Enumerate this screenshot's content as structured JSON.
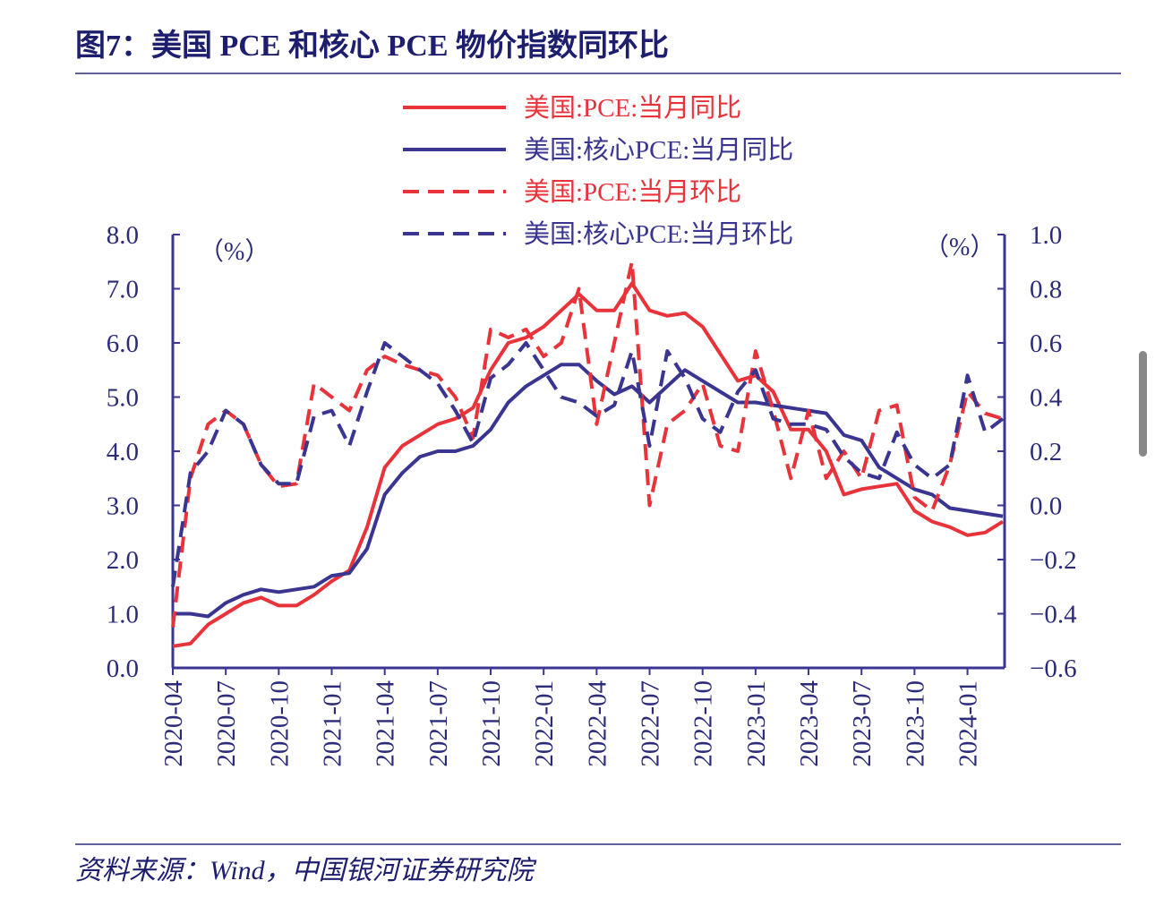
{
  "chart_data": {
    "type": "line",
    "title": "图7：美国 PCE 和核心 PCE 物价指数同环比",
    "source": "资料来源：Wind，中国银河证券研究院",
    "ylabel": "（%）",
    "y2label": "（%）",
    "legend": "top",
    "categories": [
      "2020-04",
      null,
      null,
      "2020-07",
      null,
      null,
      "2020-10",
      null,
      null,
      "2021-01",
      null,
      null,
      "2021-04",
      null,
      null,
      "2021-07",
      null,
      null,
      "2021-10",
      null,
      null,
      "2022-01",
      null,
      null,
      "2022-04",
      null,
      null,
      "2022-07",
      null,
      null,
      "2022-10",
      null,
      null,
      "2023-01",
      null,
      null,
      "2023-04",
      null,
      null,
      "2023-07",
      null,
      null,
      "2023-10",
      null,
      null,
      "2024-01",
      null,
      null
    ],
    "ylim": [
      0,
      8
    ],
    "yticks": [
      {
        "value": 0,
        "label": "0.0"
      },
      {
        "value": 1,
        "label": "1.0"
      },
      {
        "value": 2,
        "label": "2.0"
      },
      {
        "value": 3,
        "label": "3.0"
      },
      {
        "value": 4,
        "label": "4.0"
      },
      {
        "value": 5,
        "label": "5.0"
      },
      {
        "value": 6,
        "label": "6.0"
      },
      {
        "value": 7,
        "label": "7.0"
      },
      {
        "value": 8,
        "label": "8.0"
      }
    ],
    "y2lim": [
      -0.6,
      1.0
    ],
    "y2ticks": [
      {
        "value": -0.6,
        "label": "−0.6"
      },
      {
        "value": -0.4,
        "label": "−0.4"
      },
      {
        "value": -0.2,
        "label": "−0.2"
      },
      {
        "value": 0,
        "label": "0.0"
      },
      {
        "value": 0.2,
        "label": "0.2"
      },
      {
        "value": 0.4,
        "label": "0.4"
      },
      {
        "value": 0.6,
        "label": "0.6"
      },
      {
        "value": 0.8,
        "label": "0.8"
      },
      {
        "value": 1.0,
        "label": "1.0"
      }
    ],
    "series": [
      {
        "name": "美国:PCE:当月同比",
        "color": "#e8333a",
        "dash": false,
        "values": [
          0.4,
          0.45,
          0.8,
          1.0,
          1.2,
          1.3,
          1.15,
          1.15,
          1.35,
          1.6,
          1.8,
          2.6,
          3.7,
          4.1,
          4.3,
          4.5,
          4.6,
          4.8,
          5.5,
          6.0,
          6.1,
          6.3,
          6.6,
          6.9,
          6.6,
          6.6,
          7.1,
          6.6,
          6.5,
          6.55,
          6.3,
          5.8,
          5.3,
          5.4,
          5.1,
          4.4,
          4.4,
          4.0,
          3.2,
          3.3,
          3.35,
          3.4,
          2.9,
          2.7,
          2.6,
          2.45,
          2.5,
          2.7
        ]
      },
      {
        "name": "美国:核心PCE:当月同比",
        "color": "#3a3590",
        "dash": false,
        "values": [
          1.0,
          1.0,
          0.95,
          1.2,
          1.35,
          1.45,
          1.4,
          1.45,
          1.5,
          1.7,
          1.75,
          2.2,
          3.2,
          3.6,
          3.9,
          4.0,
          4.0,
          4.1,
          4.4,
          4.9,
          5.2,
          5.4,
          5.6,
          5.6,
          5.3,
          5.05,
          5.2,
          4.9,
          5.2,
          5.5,
          5.3,
          5.1,
          4.9,
          4.9,
          4.85,
          4.8,
          4.75,
          4.7,
          4.3,
          4.2,
          3.7,
          3.5,
          3.3,
          3.2,
          2.95,
          2.9,
          2.85,
          2.8
        ]
      },
      {
        "name": "美国:PCE:当月环比",
        "color": "#e8333a",
        "dash": true,
        "axis": "y2",
        "values": [
          -0.45,
          0.1,
          0.3,
          0.35,
          0.3,
          0.15,
          0.07,
          0.08,
          0.45,
          0.4,
          0.35,
          0.5,
          0.55,
          0.52,
          0.5,
          0.48,
          0.4,
          0.25,
          0.65,
          0.62,
          0.65,
          0.55,
          0.6,
          0.8,
          0.3,
          0.6,
          0.9,
          0.0,
          0.3,
          0.35,
          0.45,
          0.22,
          0.2,
          0.57,
          0.35,
          0.1,
          0.35,
          0.1,
          0.2,
          0.1,
          0.35,
          0.37,
          0.03,
          -0.02,
          0.15,
          0.42,
          0.34,
          0.32
        ]
      },
      {
        "name": "美国:核心PCE:当月环比",
        "color": "#3a3590",
        "dash": true,
        "axis": "y2",
        "values": [
          -0.3,
          0.12,
          0.2,
          0.35,
          0.3,
          0.15,
          0.08,
          0.08,
          0.33,
          0.35,
          0.22,
          0.42,
          0.6,
          0.55,
          0.5,
          0.45,
          0.35,
          0.23,
          0.47,
          0.52,
          0.6,
          0.5,
          0.4,
          0.38,
          0.33,
          0.37,
          0.57,
          0.22,
          0.57,
          0.47,
          0.32,
          0.27,
          0.42,
          0.5,
          0.32,
          0.3,
          0.3,
          0.28,
          0.18,
          0.12,
          0.1,
          0.27,
          0.15,
          0.1,
          0.15,
          0.48,
          0.27,
          0.32
        ]
      }
    ]
  }
}
